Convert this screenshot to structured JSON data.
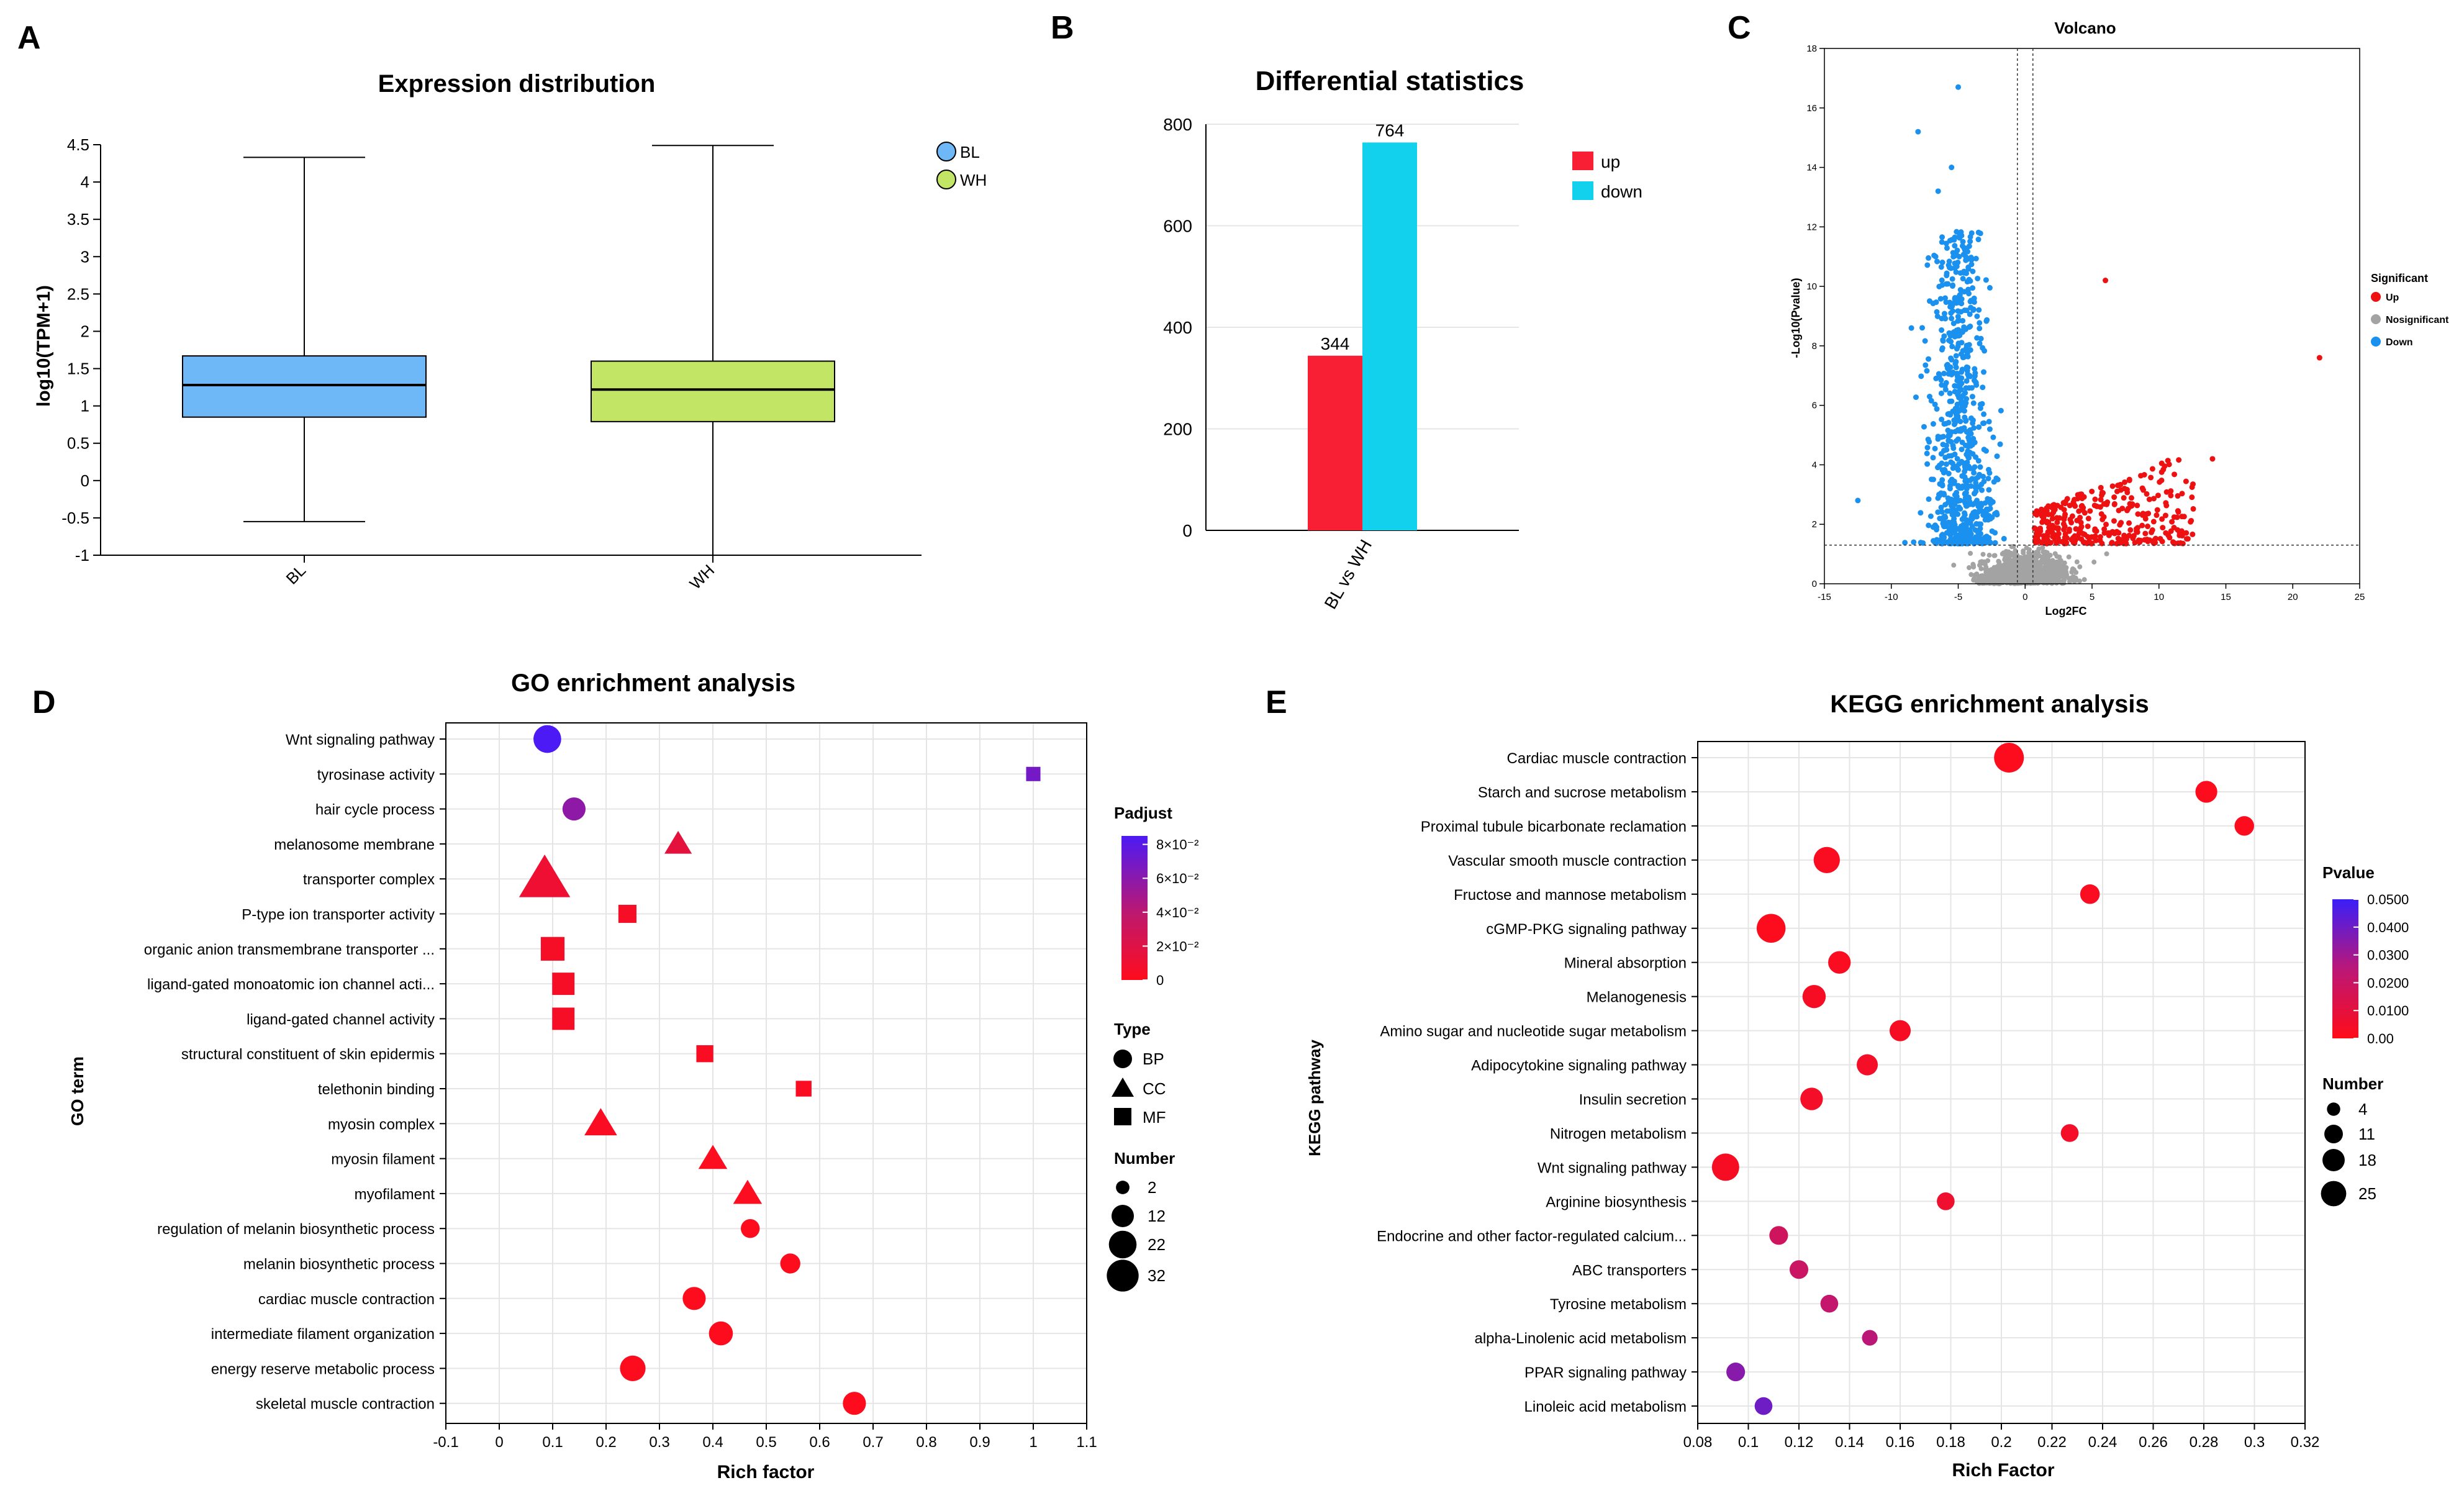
{
  "colors": {
    "red": "#f81f35",
    "cyan": "#12d1ec",
    "blueBox": "#6fb8f8",
    "greenBox": "#c2e566",
    "volUp": "#ee1111",
    "volNs": "#a3a3a3",
    "volDown": "#1a90ef",
    "purple": "#6a1cf0"
  },
  "panels": {
    "a": "A",
    "b": "B",
    "c": "C",
    "d": "D",
    "e": "E"
  },
  "chart_data": [
    {
      "id": "A",
      "type": "box",
      "title": "Expression distribution",
      "ylabel": "log10(TPM+1)",
      "ylim": [
        -1,
        4.5
      ],
      "yticks": [
        "-1",
        "-0.5",
        "0",
        "0.5",
        "1",
        "1.5",
        "2",
        "2.5",
        "3",
        "3.5",
        "4",
        "4.5"
      ],
      "groups": [
        {
          "name": "BL",
          "min": -0.55,
          "q1": 0.85,
          "median": 1.28,
          "q3": 1.67,
          "max": 4.33
        },
        {
          "name": "WH",
          "min": -1.0,
          "q1": 0.79,
          "median": 1.22,
          "q3": 1.6,
          "max": 4.49
        }
      ],
      "legend": [
        "BL",
        "WH"
      ]
    },
    {
      "id": "B",
      "type": "bar",
      "title": "Differential statistics",
      "categories": [
        "BL vs WH"
      ],
      "series": [
        {
          "name": "up",
          "values": [
            344
          ]
        },
        {
          "name": "down",
          "values": [
            764
          ]
        }
      ],
      "ylim": [
        0,
        800
      ],
      "yticks": [
        "0",
        "200",
        "400",
        "600",
        "800"
      ],
      "data_labels": [
        "344",
        "764"
      ]
    },
    {
      "id": "C",
      "type": "scatter",
      "title": "Volcano",
      "xlabel": "Log2FC",
      "ylabel": "-Log10(Pvalue)",
      "xlim": [
        -15,
        25
      ],
      "ylim": [
        0,
        18
      ],
      "xticks": [
        "-15",
        "-10",
        "-5",
        "0",
        "5",
        "10",
        "15",
        "20",
        "25"
      ],
      "yticks": [
        "0",
        "2",
        "4",
        "6",
        "8",
        "10",
        "12",
        "14",
        "16",
        "18"
      ],
      "legend_title": "Significant",
      "legend": [
        "Up",
        "Nosignificant",
        "Down"
      ],
      "thresholds": {
        "log2fc": [
          -0.58,
          0.58
        ],
        "neg_log10_p": 1.3
      },
      "counts": {
        "Up": 344,
        "Down": 764
      },
      "outliers": [
        {
          "x": -5,
          "y": 16.7
        },
        {
          "x": -8,
          "y": 15.2
        },
        {
          "x": -5.5,
          "y": 14
        },
        {
          "x": -6.5,
          "y": 13.2
        },
        {
          "x": -8.5,
          "y": 8.6
        },
        {
          "x": -12.5,
          "y": 2.8
        },
        {
          "x": 6,
          "y": 10.2
        },
        {
          "x": 22,
          "y": 7.6
        },
        {
          "x": 14,
          "y": 4.2
        }
      ]
    },
    {
      "id": "D",
      "type": "scatter",
      "title": "GO enrichment analysis",
      "xlabel": "Rich factor",
      "ylabel": "GO term",
      "xlim": [
        -0.1,
        1.1
      ],
      "xticks": [
        "-0.1",
        "0",
        "0.1",
        "0.2",
        "0.3",
        "0.4",
        "0.5",
        "0.6",
        "0.7",
        "0.8",
        "0.9",
        "1",
        "1.1"
      ],
      "terms": [
        "Wnt signaling pathway",
        "tyrosinase activity",
        "hair cycle process",
        "melanosome membrane",
        "transporter complex",
        "P-type ion transporter activity",
        "organic anion transmembrane transporter ...",
        "ligand-gated monoatomic ion channel acti...",
        "ligand-gated channel activity",
        "structural constituent of skin epidermis",
        "telethonin binding",
        "myosin complex",
        "myosin filament",
        "myofilament",
        "regulation of melanin biosynthetic process",
        "melanin biosynthetic process",
        "cardiac muscle contraction",
        "intermediate filament organization",
        "energy reserve metabolic process",
        "skeletal muscle contraction"
      ],
      "points": [
        {
          "x": 0.09,
          "type": "BP",
          "n": 14,
          "p": 0.08
        },
        {
          "x": 1.0,
          "type": "MF",
          "n": 2,
          "p": 0.065
        },
        {
          "x": 0.14,
          "type": "BP",
          "n": 8,
          "p": 0.055
        },
        {
          "x": 0.335,
          "type": "CC",
          "n": 5,
          "p": 0.015
        },
        {
          "x": 0.085,
          "type": "CC",
          "n": 32,
          "p": 0.01
        },
        {
          "x": 0.24,
          "type": "MF",
          "n": 5,
          "p": 0.005
        },
        {
          "x": 0.1,
          "type": "MF",
          "n": 12,
          "p": 0.005
        },
        {
          "x": 0.12,
          "type": "MF",
          "n": 10,
          "p": 0.005
        },
        {
          "x": 0.12,
          "type": "MF",
          "n": 10,
          "p": 0.005
        },
        {
          "x": 0.385,
          "type": "MF",
          "n": 4,
          "p": 0.003
        },
        {
          "x": 0.57,
          "type": "MF",
          "n": 3,
          "p": 0.003
        },
        {
          "x": 0.19,
          "type": "CC",
          "n": 9,
          "p": 0.003
        },
        {
          "x": 0.4,
          "type": "CC",
          "n": 6,
          "p": 0.002
        },
        {
          "x": 0.465,
          "type": "CC",
          "n": 6,
          "p": 0.002
        },
        {
          "x": 0.47,
          "type": "BP",
          "n": 4,
          "p": 0.001
        },
        {
          "x": 0.545,
          "type": "BP",
          "n": 5,
          "p": 0.001
        },
        {
          "x": 0.365,
          "type": "BP",
          "n": 8,
          "p": 0.001
        },
        {
          "x": 0.415,
          "type": "BP",
          "n": 9,
          "p": 0.001
        },
        {
          "x": 0.25,
          "type": "BP",
          "n": 11,
          "p": 0.001
        },
        {
          "x": 0.665,
          "type": "BP",
          "n": 8,
          "p": 0.0005
        }
      ],
      "color_title": "Padjust",
      "color_ticks": [
        "8×10⁻²",
        "6×10⁻²",
        "4×10⁻²",
        "2×10⁻²",
        "0"
      ],
      "type_title": "Type",
      "types": [
        "BP",
        "CC",
        "MF"
      ],
      "size_title": "Number",
      "size_ticks": [
        "2",
        "12",
        "22",
        "32"
      ]
    },
    {
      "id": "E",
      "type": "scatter",
      "title": "KEGG enrichment analysis",
      "xlabel": "Rich Factor",
      "ylabel": "KEGG pathway",
      "xlim": [
        0.08,
        0.32
      ],
      "xticks": [
        "0.08",
        "0.1",
        "0.12",
        "0.14",
        "0.16",
        "0.18",
        "0.2",
        "0.22",
        "0.24",
        "0.26",
        "0.28",
        "0.3",
        "0.32"
      ],
      "terms": [
        "Cardiac muscle contraction",
        "Starch and sucrose metabolism",
        "Proximal tubule bicarbonate reclamation",
        "Vascular smooth muscle contraction",
        "Fructose and mannose metabolism",
        "cGMP-PKG signaling pathway",
        "Mineral absorption",
        "Melanogenesis",
        "Amino sugar and nucleotide sugar metabolism",
        "Adipocytokine signaling pathway",
        "Insulin secretion",
        "Nitrogen metabolism",
        "Wnt signaling pathway",
        "Arginine biosynthesis",
        "Endocrine and other factor-regulated calcium...",
        "ABC transporters",
        "Tyrosine metabolism",
        "alpha-Linolenic acid metabolism",
        "PPAR signaling pathway",
        "Linoleic acid metabolism"
      ],
      "points": [
        {
          "x": 0.203,
          "n": 25,
          "p": 0.001
        },
        {
          "x": 0.281,
          "n": 11,
          "p": 0.001
        },
        {
          "x": 0.296,
          "n": 8,
          "p": 0.001
        },
        {
          "x": 0.131,
          "n": 18,
          "p": 0.002
        },
        {
          "x": 0.235,
          "n": 8,
          "p": 0.002
        },
        {
          "x": 0.109,
          "n": 23,
          "p": 0.001
        },
        {
          "x": 0.136,
          "n": 12,
          "p": 0.002
        },
        {
          "x": 0.126,
          "n": 13,
          "p": 0.003
        },
        {
          "x": 0.16,
          "n": 10,
          "p": 0.003
        },
        {
          "x": 0.147,
          "n": 10,
          "p": 0.004
        },
        {
          "x": 0.125,
          "n": 12,
          "p": 0.004
        },
        {
          "x": 0.227,
          "n": 6,
          "p": 0.004
        },
        {
          "x": 0.091,
          "n": 20,
          "p": 0.003
        },
        {
          "x": 0.178,
          "n": 6,
          "p": 0.006
        },
        {
          "x": 0.112,
          "n": 7,
          "p": 0.018
        },
        {
          "x": 0.12,
          "n": 7,
          "p": 0.02
        },
        {
          "x": 0.132,
          "n": 6,
          "p": 0.022
        },
        {
          "x": 0.148,
          "n": 4,
          "p": 0.025
        },
        {
          "x": 0.095,
          "n": 7,
          "p": 0.035
        },
        {
          "x": 0.106,
          "n": 6,
          "p": 0.04
        }
      ],
      "color_title": "Pvalue",
      "color_ticks": [
        "0.0500",
        "0.0400",
        "0.0300",
        "0.0200",
        "0.0100",
        "0.00"
      ],
      "size_title": "Number",
      "size_ticks": [
        "4",
        "11",
        "18",
        "25"
      ]
    }
  ]
}
